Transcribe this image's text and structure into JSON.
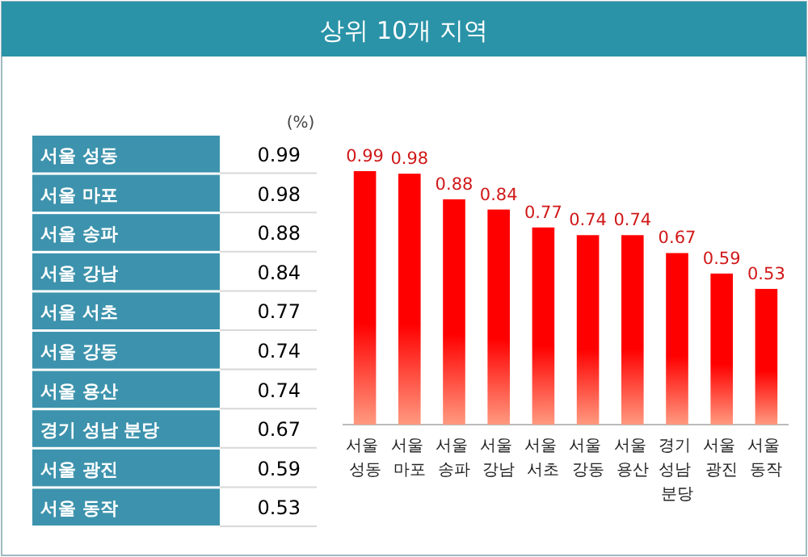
{
  "chart_data": [
    {
      "type": "other",
      "title": "상위 10개 지역",
      "annotations": [
        "(%)"
      ],
      "categories": [
        "서울 성동",
        "서울 마포",
        "서울 송파",
        "서울 강남",
        "서울 서초",
        "서울 강동",
        "서울 용산",
        "경기 성남 분당",
        "서울 광진",
        "서울 동작"
      ],
      "value_labels": [
        "0.99",
        "0.98",
        "0.88",
        "0.84",
        "0.77",
        "0.74",
        "0.74",
        "0.67",
        "0.59",
        "0.53"
      ]
    },
    {
      "type": "bar",
      "categories": [
        "서울 성동",
        "서울 마포",
        "서울 송파",
        "서울 강남",
        "서울 서초",
        "서울 강동",
        "서울 용산",
        "경기 성남 분당",
        "서울 광진",
        "서울 동작"
      ],
      "values": [
        0.99,
        0.98,
        0.88,
        0.84,
        0.77,
        0.74,
        0.74,
        0.67,
        0.59,
        0.53
      ],
      "color": "#ff0000",
      "data_labels": true
    }
  ]
}
